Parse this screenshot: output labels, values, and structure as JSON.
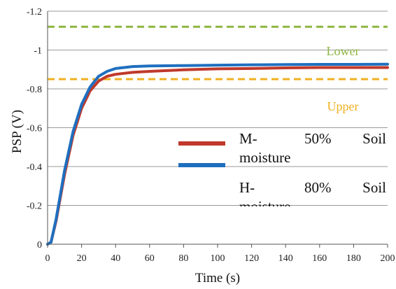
{
  "chart_data": {
    "type": "line",
    "xlabel": "Time (s)",
    "ylabel": "PSP (V)",
    "xlim": [
      0,
      200
    ],
    "ylim": [
      0,
      -1.2
    ],
    "y_axis_inverted": true,
    "grid": "horizontal",
    "x_ticks": [
      0,
      20,
      40,
      60,
      80,
      100,
      120,
      140,
      160,
      180,
      200
    ],
    "y_ticks": [
      0,
      -0.2,
      -0.4,
      -0.6,
      -0.8,
      -1,
      -1.2
    ],
    "y_tick_labels": [
      "0",
      "-0.2",
      "-0.4",
      "-0.6",
      "-0.8",
      "-1",
      "-1.2"
    ],
    "series": [
      {
        "name": "M- 50% Soil moisture",
        "color": "#c0392b",
        "x": [
          0,
          2,
          5,
          10,
          15,
          20,
          25,
          30,
          35,
          40,
          50,
          60,
          80,
          100,
          120,
          140,
          160,
          180,
          200
        ],
        "y": [
          0,
          -0.01,
          -0.12,
          -0.36,
          -0.56,
          -0.7,
          -0.79,
          -0.84,
          -0.865,
          -0.875,
          -0.885,
          -0.89,
          -0.898,
          -0.903,
          -0.905,
          -0.908,
          -0.91,
          -0.91,
          -0.91
        ]
      },
      {
        "name": "H- 80% Soil moisture",
        "color": "#1f6fbf",
        "x": [
          0,
          2,
          5,
          10,
          15,
          20,
          25,
          30,
          35,
          40,
          50,
          60,
          80,
          100,
          120,
          140,
          160,
          180,
          200
        ],
        "y": [
          0,
          -0.01,
          -0.13,
          -0.38,
          -0.58,
          -0.72,
          -0.81,
          -0.865,
          -0.89,
          -0.905,
          -0.915,
          -0.918,
          -0.92,
          -0.922,
          -0.924,
          -0.925,
          -0.926,
          -0.926,
          -0.927
        ]
      }
    ],
    "thresholds": [
      {
        "label": "Lower",
        "value": -1.12,
        "color": "#8db640"
      },
      {
        "label": "Upper",
        "value": -0.85,
        "color": "#f0b020"
      }
    ],
    "legend": {
      "items": [
        {
          "line1": [
            "M-",
            "50%",
            "Soil"
          ],
          "line2": "moisture",
          "color": "#c0392b"
        },
        {
          "line1": [
            "H-",
            "80%",
            "Soil"
          ],
          "line2": "moisture",
          "color": "#1f6fbf"
        }
      ]
    }
  }
}
